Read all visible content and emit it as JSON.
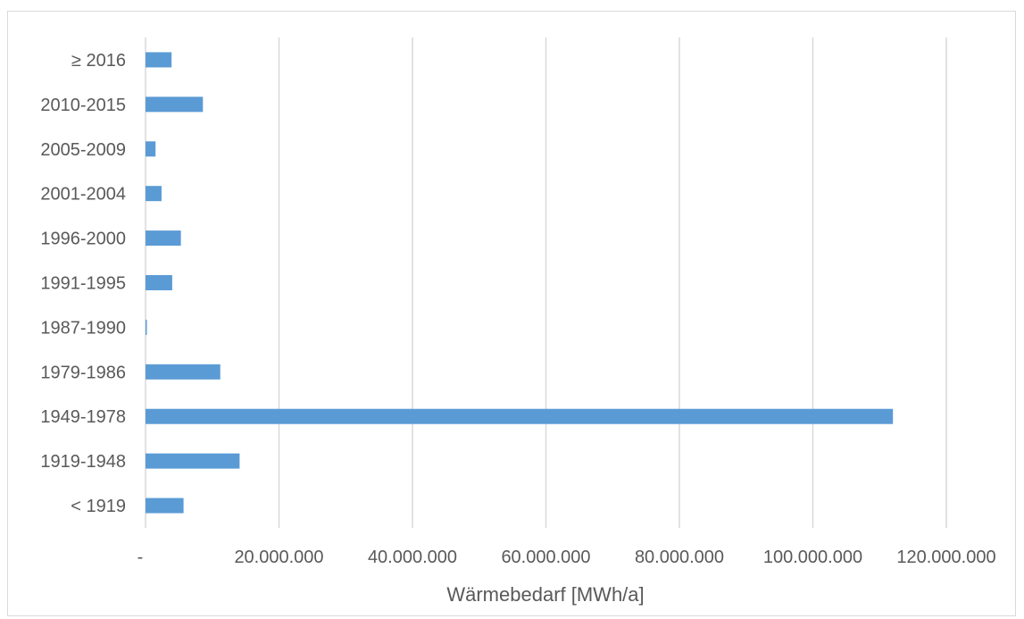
{
  "chart_data": {
    "type": "bar",
    "orientation": "horizontal",
    "title": "",
    "xlabel": "Wärmebedarf [MWh/a]",
    "ylabel": "",
    "categories": [
      "≥ 2016",
      "2010-2015",
      "2005-2009",
      "2001-2004",
      "1996-2000",
      "1991-1995",
      "1987-1990",
      "1979-1986",
      "1949-1978",
      "1919-1948",
      "< 1919"
    ],
    "values": [
      3900000,
      8600000,
      1500000,
      2400000,
      5300000,
      4000000,
      150000,
      11200000,
      112000000,
      14100000,
      5700000
    ],
    "xlim": [
      0,
      120000000
    ],
    "x_ticks": [
      0,
      20000000,
      40000000,
      60000000,
      80000000,
      100000000,
      120000000
    ],
    "x_tick_labels": [
      "-",
      "20.000.000",
      "40.000.000",
      "60.000.000",
      "80.000.000",
      "100.000.000",
      "120.000.000"
    ],
    "bar_color": "#5b9bd5",
    "grid": true,
    "grid_color": "#d9d9d9",
    "legend": "none"
  }
}
